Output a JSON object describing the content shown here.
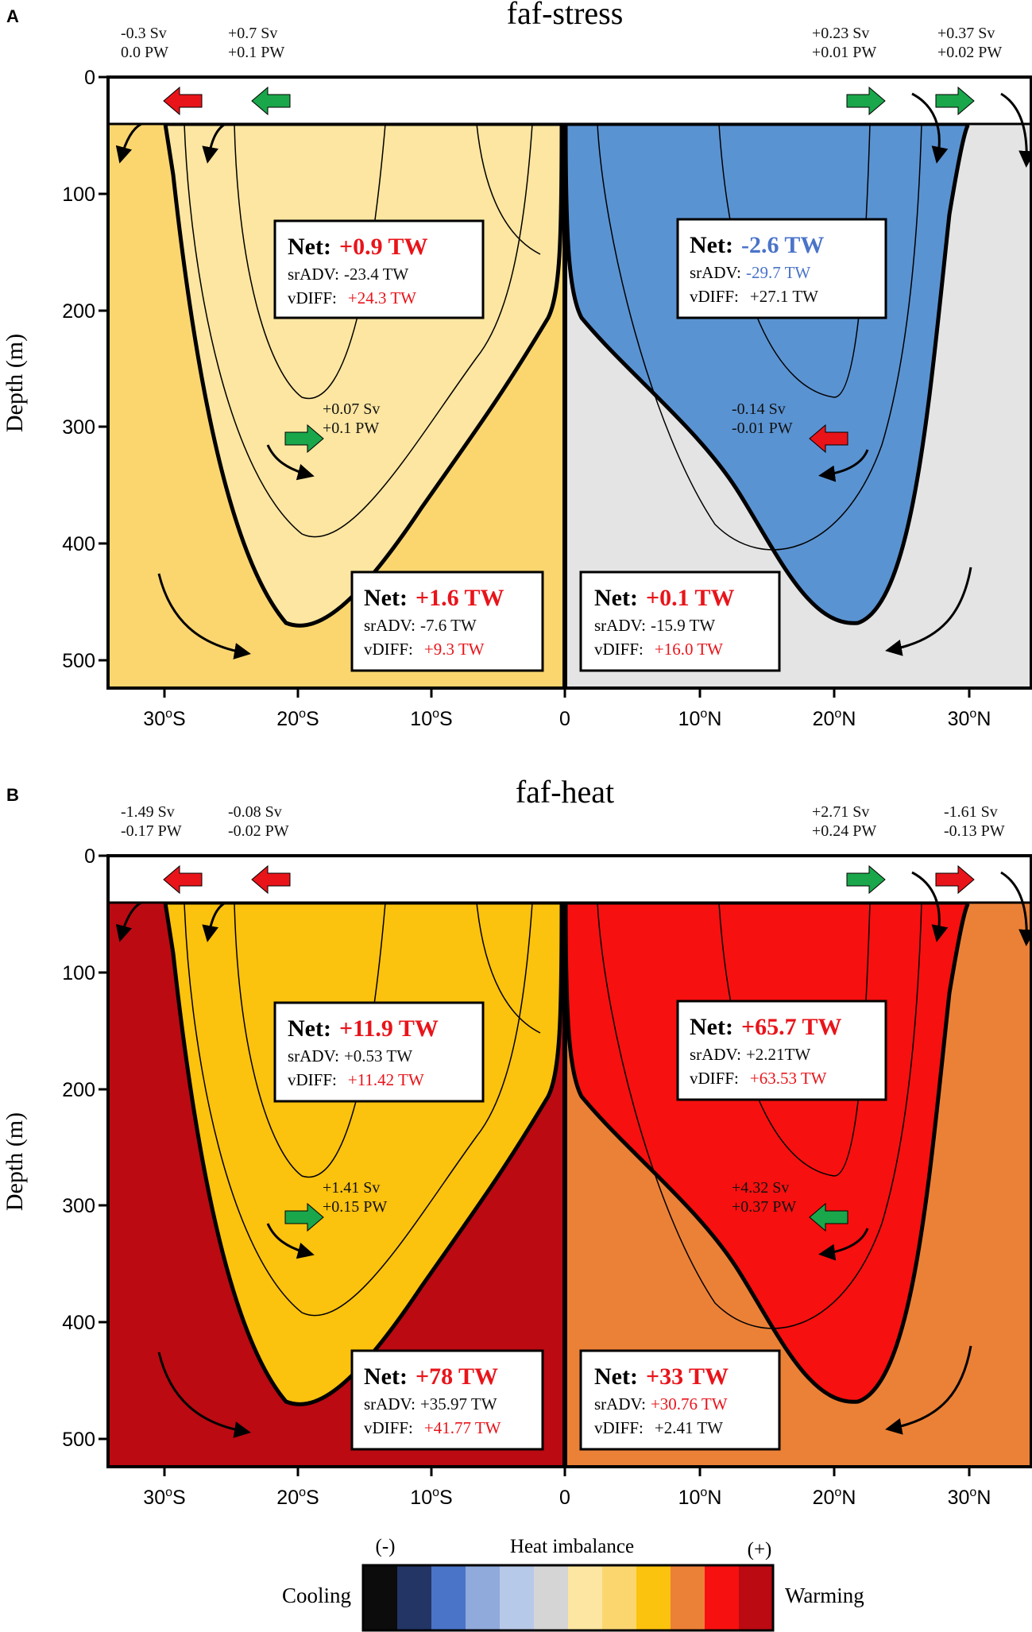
{
  "colors": {
    "red_arrow": "#e8141a",
    "green_arrow": "#1aa64a",
    "net_red": "#e8141a",
    "net_blue": "#4a74c8"
  },
  "axis": {
    "ylabel": "Depth (m)",
    "yticks": [
      "0",
      "100",
      "200",
      "300",
      "400",
      "500"
    ],
    "xticks": [
      {
        "deg": "30",
        "hemi": "S"
      },
      {
        "deg": "20",
        "hemi": "S"
      },
      {
        "deg": "10",
        "hemi": "S"
      },
      {
        "deg": "0",
        "hemi": ""
      },
      {
        "deg": "10",
        "hemi": "N"
      },
      {
        "deg": "20",
        "hemi": "N"
      },
      {
        "deg": "30",
        "hemi": "N"
      }
    ],
    "degree_mark": "o"
  },
  "panels": [
    {
      "letter": "A",
      "title": "faf-stress",
      "bg_south": "#fbd66f",
      "bg_north": "#e5e4e5",
      "cell_south": "#fde6a1",
      "cell_north": "#5a93d2",
      "transports": [
        {
          "line1": "-0.3 Sv",
          "line2": "0.0  PW",
          "arrow": "left",
          "color": "red"
        },
        {
          "line1": "+0.7 Sv",
          "line2": "+0.1 PW",
          "arrow": "left",
          "color": "green"
        },
        {
          "line1": "+0.23 Sv",
          "line2": "+0.01 PW",
          "arrow": "right",
          "color": "green"
        },
        {
          "line1": "+0.37 Sv",
          "line2": "+0.02 PW",
          "arrow": "right",
          "color": "green"
        }
      ],
      "inner": [
        {
          "line1": "+0.07 Sv",
          "line2": "+0.1 PW",
          "arrow": "right",
          "color": "green"
        },
        {
          "line1": "-0.14 Sv",
          "line2": "-0.01 PW",
          "arrow": "left",
          "color": "red"
        }
      ],
      "boxes": [
        {
          "net_label": "Net:",
          "net_value": "+0.9 TW",
          "net_color": "red",
          "sradv_label": "srADV:",
          "sradv_value": "-23.4 TW",
          "sradv_color": "black",
          "vdiff_label": "vDIFF:",
          "vdiff_value": "+24.3 TW",
          "vdiff_color": "red"
        },
        {
          "net_label": "Net:",
          "net_value": "-2.6 TW",
          "net_color": "blue",
          "sradv_label": "srADV:",
          "sradv_value": "-29.7 TW",
          "sradv_color": "blue",
          "vdiff_label": "vDIFF:",
          "vdiff_value": "+27.1 TW",
          "vdiff_color": "black"
        },
        {
          "net_label": "Net:",
          "net_value": "+1.6 TW",
          "net_color": "red",
          "sradv_label": "srADV:",
          "sradv_value": "-7.6 TW",
          "sradv_color": "black",
          "vdiff_label": "vDIFF:",
          "vdiff_value": "+9.3 TW",
          "vdiff_color": "red"
        },
        {
          "net_label": "Net:",
          "net_value": "+0.1 TW",
          "net_color": "red",
          "sradv_label": "srADV:",
          "sradv_value": "-15.9 TW",
          "sradv_color": "black",
          "vdiff_label": "vDIFF:",
          "vdiff_value": "+16.0 TW",
          "vdiff_color": "red"
        }
      ]
    },
    {
      "letter": "B",
      "title": "faf-heat",
      "bg_south": "#bb0a12",
      "bg_north": "#eb8137",
      "cell_south": "#fbc20e",
      "cell_north": "#f6100f",
      "transports": [
        {
          "line1": "-1.49 Sv",
          "line2": "-0.17 PW",
          "arrow": "left",
          "color": "red"
        },
        {
          "line1": "-0.08 Sv",
          "line2": "-0.02 PW",
          "arrow": "left",
          "color": "red"
        },
        {
          "line1": "+2.71 Sv",
          "line2": "+0.24 PW",
          "arrow": "right",
          "color": "green"
        },
        {
          "line1": "-1.61 Sv",
          "line2": "-0.13 PW",
          "arrow": "right",
          "color": "red"
        }
      ],
      "inner": [
        {
          "line1": "+1.41 Sv",
          "line2": "+0.15 PW",
          "arrow": "right",
          "color": "green"
        },
        {
          "line1": "+4.32 Sv",
          "line2": "+0.37 PW",
          "arrow": "left",
          "color": "green"
        }
      ],
      "boxes": [
        {
          "net_label": "Net:",
          "net_value": "+11.9 TW",
          "net_color": "red",
          "sradv_label": "srADV:",
          "sradv_value": "+0.53 TW",
          "sradv_color": "black",
          "vdiff_label": "vDIFF:",
          "vdiff_value": "+11.42 TW",
          "vdiff_color": "red"
        },
        {
          "net_label": "Net:",
          "net_value": "+65.7 TW",
          "net_color": "red",
          "sradv_label": "srADV:",
          "sradv_value": "+2.21TW",
          "sradv_color": "black",
          "vdiff_label": "vDIFF:",
          "vdiff_value": "+63.53 TW",
          "vdiff_color": "red"
        },
        {
          "net_label": "Net:",
          "net_value": "+78 TW",
          "net_color": "red",
          "sradv_label": "srADV:",
          "sradv_value": "+35.97 TW",
          "sradv_color": "black",
          "vdiff_label": "vDIFF:",
          "vdiff_value": "+41.77 TW",
          "vdiff_color": "red"
        },
        {
          "net_label": "Net:",
          "net_value": "+33 TW",
          "net_color": "red",
          "sradv_label": "srADV:",
          "sradv_value": "+30.76 TW",
          "sradv_color": "red",
          "vdiff_label": "vDIFF:",
          "vdiff_value": "+2.41 TW",
          "vdiff_color": "black"
        }
      ]
    }
  ],
  "legend": {
    "title": "Heat imbalance",
    "minus": "(-)",
    "plus": "(+)",
    "left_label": "Cooling",
    "right_label": "Warming",
    "swatches": [
      "#0c0c0c",
      "#223565",
      "#4a74c8",
      "#90aadc",
      "#b7c9e8",
      "#d6d5d6",
      "#fde6a1",
      "#fbd66f",
      "#fbc20e",
      "#eb8137",
      "#f6100f",
      "#bb0a12"
    ]
  }
}
